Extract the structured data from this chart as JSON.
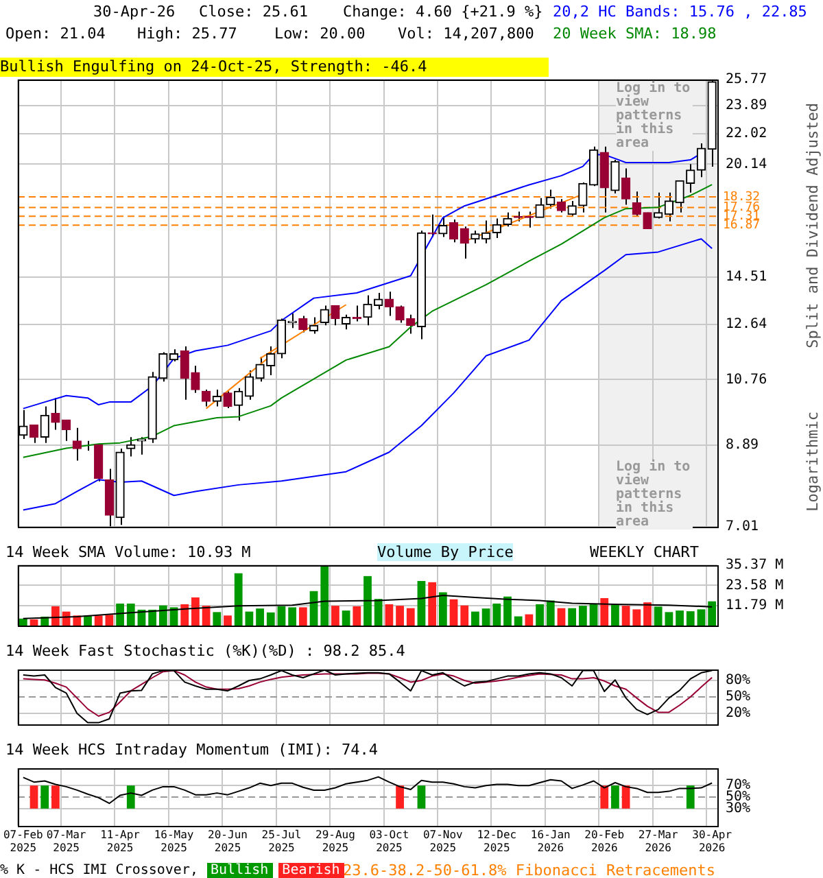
{
  "chart_data": [
    {
      "type": "candlestick",
      "subtitle": "Bullish Engulfing on 24-Oct-25, Strength: -46.4",
      "ylabel": "Split and Dividend Adjusted",
      "annotations": [
        "30-Apr-26",
        "Close: 25.61",
        "Change: 4.60 {+21.9 %}",
        "20,2 HC Bands: 15.76 , 22.85",
        "Open: 21.04",
        "High: 25.77",
        "Low: 20.00",
        "Vol: 14,207,800",
        "20 Week SMA: 18.98",
        "Log in to view patterns in this area",
        "Log in to view patterns in this area",
        "Logarithmic"
      ],
      "categories": [
        "07-Feb 2025",
        null,
        null,
        null,
        "07-Mar 2025",
        null,
        null,
        null,
        null,
        "11-Apr 2025",
        null,
        null,
        null,
        null,
        "16-May 2025",
        null,
        null,
        null,
        null,
        "20-Jun 2025",
        null,
        null,
        null,
        null,
        "25-Jul 2025",
        null,
        null,
        null,
        null,
        "29-Aug 2025",
        null,
        null,
        null,
        null,
        "03-Oct 2025",
        null,
        null,
        null,
        null,
        "07-Nov 2025",
        null,
        null,
        null,
        null,
        "12-Dec 2025",
        null,
        null,
        null,
        null,
        "16-Jan 2026",
        null,
        null,
        null,
        null,
        "20-Feb 2026",
        null,
        null,
        null,
        null,
        "27-Mar 2026",
        null,
        null,
        null,
        null,
        "30-Apr 2026"
      ],
      "tick_labels": "y",
      "log": true,
      "ylim": [
        7.01,
        25.77
      ],
      "yticks": [
        7.01,
        8.89,
        10.76,
        12.64,
        14.51,
        20.14,
        22.02,
        23.89,
        25.77
      ],
      "grid": true,
      "marker": "none",
      "ohlc": [
        [
          9.15,
          9.85,
          9.05,
          9.4
        ],
        [
          9.43,
          9.43,
          8.95,
          9.1
        ],
        [
          9.1,
          9.95,
          8.95,
          9.7
        ],
        [
          9.75,
          10.2,
          9.3,
          9.5
        ],
        [
          9.57,
          9.57,
          9.0,
          9.3
        ],
        [
          9.0,
          9.35,
          8.5,
          8.8
        ],
        [
          8.9,
          9.0,
          8.75,
          8.9
        ],
        [
          8.9,
          8.9,
          8.0,
          8.07
        ],
        [
          8.04,
          8.3,
          7.02,
          7.25
        ],
        [
          7.2,
          8.8,
          7.05,
          8.71
        ],
        [
          8.8,
          9.1,
          8.6,
          8.9
        ],
        [
          9.0,
          9.1,
          8.65,
          9.05
        ],
        [
          9.05,
          11.0,
          8.95,
          10.85
        ],
        [
          10.8,
          11.65,
          10.7,
          11.6
        ],
        [
          11.4,
          11.75,
          11.35,
          11.6
        ],
        [
          11.7,
          11.85,
          10.15,
          10.8
        ],
        [
          10.98,
          11.2,
          10.35,
          10.45
        ],
        [
          10.4,
          10.45,
          9.95,
          10.1
        ],
        [
          10.1,
          10.45,
          9.95,
          10.25
        ],
        [
          10.35,
          10.4,
          9.9,
          9.95
        ],
        [
          9.98,
          10.5,
          9.55,
          10.4
        ],
        [
          10.25,
          11.05,
          10.15,
          10.85
        ],
        [
          10.8,
          11.5,
          10.7,
          11.25
        ],
        [
          11.2,
          11.85,
          10.9,
          11.6
        ],
        [
          11.6,
          12.85,
          11.45,
          12.8
        ],
        [
          12.7,
          13.05,
          12.5,
          12.75
        ],
        [
          12.85,
          12.95,
          12.35,
          12.45
        ],
        [
          12.4,
          12.9,
          12.3,
          12.6
        ],
        [
          12.7,
          13.35,
          12.6,
          13.2
        ],
        [
          13.35,
          13.35,
          12.6,
          12.85
        ],
        [
          12.65,
          13.0,
          12.45,
          12.9
        ],
        [
          12.9,
          13.35,
          12.75,
          12.85
        ],
        [
          12.9,
          13.75,
          12.6,
          13.4
        ],
        [
          13.35,
          13.85,
          13.2,
          13.6
        ],
        [
          13.6,
          13.9,
          12.95,
          13.3
        ],
        [
          13.3,
          13.35,
          12.7,
          12.8
        ],
        [
          12.85,
          13.0,
          12.3,
          12.6
        ],
        [
          12.55,
          16.6,
          12.1,
          16.5
        ],
        [
          16.5,
          17.4,
          16.3,
          16.45
        ],
        [
          16.45,
          17.3,
          16.3,
          16.85
        ],
        [
          17.0,
          17.15,
          16.05,
          16.2
        ],
        [
          16.7,
          16.8,
          15.3,
          16.0
        ],
        [
          16.2,
          16.6,
          16.0,
          16.45
        ],
        [
          16.2,
          17.1,
          16.0,
          16.5
        ],
        [
          16.5,
          17.2,
          16.25,
          16.9
        ],
        [
          16.9,
          17.5,
          16.8,
          17.2
        ],
        [
          17.3,
          17.55,
          17.05,
          17.25
        ],
        [
          17.3,
          17.55,
          16.75,
          17.25
        ],
        [
          17.25,
          18.25,
          17.25,
          17.9
        ],
        [
          17.9,
          18.7,
          17.7,
          18.3
        ],
        [
          18.05,
          18.2,
          17.5,
          17.6
        ],
        [
          17.4,
          18.1,
          17.3,
          17.85
        ],
        [
          17.85,
          19.1,
          17.5,
          19.05
        ],
        [
          18.95,
          21.2,
          18.9,
          21.0
        ],
        [
          20.85,
          21.2,
          17.5,
          18.8
        ],
        [
          18.65,
          20.4,
          18.5,
          20.3
        ],
        [
          19.35,
          19.9,
          17.9,
          18.2
        ],
        [
          18.0,
          18.6,
          17.3,
          17.4
        ],
        [
          17.5,
          17.5,
          16.7,
          16.7
        ],
        [
          17.25,
          18.55,
          17.2,
          17.5
        ],
        [
          17.4,
          18.55,
          17.05,
          18.1
        ],
        [
          18.0,
          19.2,
          17.5,
          19.2
        ],
        [
          19.05,
          20.15,
          18.55,
          19.8
        ],
        [
          19.8,
          21.4,
          19.4,
          21.1
        ],
        [
          21.04,
          25.77,
          20.0,
          25.61
        ]
      ],
      "colors": [
        "#000000",
        "#990033",
        "#000000",
        "#990033",
        "#990033",
        "#990033",
        "#000000",
        "#990033",
        "#990033",
        "#000000",
        "#000000",
        "#000000",
        "#000000",
        "#000000",
        "#000000",
        "#990033",
        "#990033",
        "#990033",
        "#000000",
        "#990033",
        "#000000",
        "#000000",
        "#000000",
        "#000000",
        "#000000",
        "#000000",
        "#990033",
        "#000000",
        "#000000",
        "#990033",
        "#000000",
        "#990033",
        "#000000",
        "#000000",
        "#990033",
        "#990033",
        "#990033",
        "#000000",
        "#990033",
        "#000000",
        "#990033",
        "#990033",
        "#000000",
        "#000000",
        "#000000",
        "#000000",
        "#990033",
        "#990033",
        "#000000",
        "#000000",
        "#990033",
        "#000000",
        "#000000",
        "#000000",
        "#990033",
        "#000000",
        "#990033",
        "#990033",
        "#990033",
        "#000000",
        "#000000",
        "#000000",
        "#000000",
        "#000000",
        "#000000"
      ],
      "series": [
        {
          "type": "line",
          "color": "#0000ff",
          "values": [
            9.89,
            null,
            10.08,
            null,
            10.27,
            null,
            10.2,
            10.0,
            10.08,
            null,
            10.08,
            null,
            10.56,
            null,
            11.44,
            null,
            11.7,
            null,
            null,
            11.89,
            null,
            null,
            null,
            12.4,
            12.78,
            null,
            null,
            13.64,
            null,
            null,
            null,
            13.85,
            null,
            null,
            null,
            null,
            14.56,
            null,
            null,
            17.24,
            null,
            17.84,
            null,
            null,
            null,
            null,
            null,
            18.97,
            null,
            null,
            19.48,
            null,
            20.01,
            20.71,
            20.71,
            20.48,
            20.24,
            null,
            20.24,
            null,
            20.24,
            null,
            20.4,
            20.79,
            null
          ]
        },
        {
          "type": "line",
          "color": "#0000ff",
          "values": [
            7.36,
            null,
            null,
            7.5,
            null,
            7.77,
            null,
            8.04,
            null,
            7.98,
            null,
            8.01,
            null,
            null,
            7.68,
            null,
            7.77,
            null,
            null,
            null,
            7.92,
            null,
            null,
            null,
            8.01,
            null,
            null,
            null,
            null,
            null,
            8.23,
            null,
            null,
            null,
            8.71,
            null,
            null,
            9.41,
            null,
            null,
            10.35,
            null,
            null,
            11.53,
            null,
            null,
            null,
            12.07,
            null,
            null,
            13.54,
            null,
            null,
            null,
            14.78,
            null,
            15.48,
            null,
            null,
            15.6,
            null,
            null,
            null,
            16.21,
            15.76
          ]
        },
        {
          "type": "line",
          "color": "#008800",
          "values": [
            8.58,
            null,
            null,
            null,
            8.81,
            null,
            null,
            8.92,
            null,
            8.95,
            null,
            null,
            9.12,
            null,
            9.41,
            null,
            9.52,
            null,
            9.63,
            null,
            9.66,
            null,
            null,
            9.97,
            10.2,
            null,
            null,
            null,
            null,
            null,
            11.39,
            null,
            null,
            null,
            11.84,
            null,
            12.54,
            null,
            13.13,
            null,
            null,
            null,
            null,
            14.18,
            null,
            null,
            null,
            15.19,
            null,
            null,
            15.96,
            null,
            null,
            null,
            17.24,
            null,
            17.7,
            null,
            null,
            17.77,
            null,
            null,
            18.39,
            null,
            18.98
          ]
        },
        {
          "type": "line",
          "color": "#ff8000",
          "values": [
            null,
            null,
            null,
            null,
            null,
            null,
            null,
            null,
            null,
            null,
            null,
            null,
            null,
            null,
            null,
            null,
            null,
            9.89,
            null,
            null,
            null,
            null,
            null,
            null,
            11.83,
            null,
            null,
            null,
            null,
            null,
            null,
            null,
            null,
            null,
            null,
            null,
            null,
            null,
            null,
            null,
            null,
            null,
            null,
            null,
            null,
            null,
            null,
            null,
            null,
            null,
            null,
            null,
            null,
            null,
            null,
            null,
            null,
            null,
            null,
            null,
            null,
            null,
            null,
            null,
            null
          ]
        },
        {
          "type": "line",
          "color": "#ff8000",
          "values": [
            null,
            null,
            null,
            null,
            null,
            null,
            null,
            null,
            null,
            null,
            null,
            null,
            null,
            null,
            null,
            null,
            null,
            null,
            null,
            null,
            null,
            null,
            11.44,
            null,
            null,
            null,
            null,
            null,
            null,
            null,
            13.38,
            null,
            null,
            null,
            null,
            null,
            null,
            null,
            null,
            null,
            null,
            null,
            null,
            null,
            null,
            null,
            null,
            null,
            null,
            null,
            null,
            null,
            null,
            null,
            null,
            null,
            null,
            null,
            null,
            null,
            null,
            null,
            null,
            null,
            null
          ]
        },
        {
          "type": "line",
          "color": "#ff8000",
          "values": [
            null,
            null,
            null,
            null,
            null,
            null,
            null,
            null,
            null,
            null,
            null,
            null,
            null,
            null,
            null,
            null,
            null,
            null,
            null,
            null,
            null,
            null,
            null,
            null,
            null,
            null,
            null,
            null,
            null,
            null,
            null,
            null,
            null,
            null,
            null,
            null,
            null,
            null,
            null,
            null,
            null,
            16.09,
            null,
            null,
            null,
            null,
            null,
            null,
            null,
            null,
            null,
            null,
            18.46,
            null,
            null,
            null,
            null,
            null,
            null,
            null,
            null,
            null,
            null,
            null,
            null
          ]
        }
      ],
      "ref_lines": [
        {
          "axis": "y",
          "value": 18.32,
          "label": "18.32",
          "color": "#ff8000",
          "line_style": "dashed"
        },
        {
          "axis": "y",
          "value": 17.76,
          "label": "17.76",
          "color": "#ff8000",
          "line_style": "dashed"
        },
        {
          "axis": "y",
          "value": 17.31,
          "label": "17.31",
          "color": "#ff8000",
          "line_style": "dashed"
        },
        {
          "axis": "y",
          "value": 16.87,
          "label": "16.87",
          "color": "#ff8000",
          "line_style": "dashed"
        }
      ],
      "bands": [
        {
          "axis": "x",
          "from": "20-Feb 2026",
          "to": "30-Apr 2026",
          "color": "#f0f0f0"
        }
      ]
    },
    {
      "type": "bar",
      "title": "14 Week SMA Volume: 10.93 M",
      "annotations": [
        "Volume By Price",
        "WEEKLY CHART"
      ],
      "categories": [
        "07-Feb 2025",
        null,
        null,
        null,
        "07-Mar 2025",
        null,
        null,
        null,
        null,
        "11-Apr 2025",
        null,
        null,
        null,
        null,
        "16-May 2025",
        null,
        null,
        null,
        null,
        "20-Jun 2025",
        null,
        null,
        null,
        null,
        "25-Jul 2025",
        null,
        null,
        null,
        null,
        "29-Aug 2025",
        null,
        null,
        null,
        null,
        "03-Oct 2025",
        null,
        null,
        null,
        null,
        "07-Nov 2025",
        null,
        null,
        null,
        null,
        "12-Dec 2025",
        null,
        null,
        null,
        null,
        "16-Jan 2026",
        null,
        null,
        null,
        null,
        "20-Feb 2026",
        null,
        null,
        null,
        null,
        "27-Mar 2026",
        null,
        null,
        null,
        null,
        "30-Apr 2026"
      ],
      "tick_labels": "y",
      "ylim": [
        0,
        35.37
      ],
      "yticks": [
        {
          "value": 11.79,
          "label": "11.79 M"
        },
        {
          "value": 23.58,
          "label": "23.58 M"
        },
        {
          "value": 35.37,
          "label": "35.37 M"
        }
      ],
      "grid": true,
      "marker": "none",
      "series": [
        {
          "type": "bar",
          "values": [
            4.1,
            3.6,
            5.2,
            11.3,
            8.2,
            5.9,
            5.9,
            5.9,
            6.3,
            12.9,
            12.9,
            9.3,
            9.3,
            11.8,
            10.7,
            12.5,
            16.5,
            11.6,
            7.9,
            5.9,
            30.6,
            8.2,
            10.0,
            7.7,
            11.3,
            10.7,
            10.7,
            20.2,
            34.7,
            11.6,
            8.8,
            11.3,
            29.0,
            15.6,
            12.5,
            11.6,
            10.2,
            26.1,
            25.4,
            19.5,
            15.4,
            11.8,
            8.2,
            10.0,
            12.9,
            17.0,
            5.4,
            6.6,
            12.5,
            14.7,
            10.2,
            10.2,
            11.6,
            12.9,
            16.1,
            12.5,
            11.6,
            9.5,
            13.6,
            11.1,
            7.9,
            8.8,
            8.4,
            9.5,
            14.2
          ],
          "colors": [
            "#009900",
            "#ff2020",
            "#009900",
            "#ff2020",
            "#ff2020",
            "#ff2020",
            "#009900",
            "#ff2020",
            "#ff2020",
            "#009900",
            "#009900",
            "#009900",
            "#009900",
            "#009900",
            "#009900",
            "#ff2020",
            "#ff2020",
            "#ff2020",
            "#009900",
            "#ff2020",
            "#009900",
            "#009900",
            "#009900",
            "#009900",
            "#009900",
            "#009900",
            "#ff2020",
            "#009900",
            "#009900",
            "#ff2020",
            "#009900",
            "#ff2020",
            "#009900",
            "#009900",
            "#ff2020",
            "#ff2020",
            "#ff2020",
            "#009900",
            "#ff2020",
            "#009900",
            "#ff2020",
            "#ff2020",
            "#009900",
            "#009900",
            "#009900",
            "#009900",
            "#009900",
            "#ff2020",
            "#009900",
            "#009900",
            "#ff2020",
            "#009900",
            "#009900",
            "#009900",
            "#ff2020",
            "#009900",
            "#ff2020",
            "#ff2020",
            "#ff2020",
            "#009900",
            "#009900",
            "#009900",
            "#009900",
            "#009900",
            "#009900"
          ]
        },
        {
          "type": "line",
          "color": "#000000",
          "values": [
            4.1,
            null,
            null,
            null,
            null,
            5.2,
            null,
            null,
            null,
            null,
            7.5,
            null,
            null,
            null,
            null,
            9.7,
            null,
            null,
            null,
            null,
            11.6,
            null,
            null,
            null,
            null,
            12.0,
            null,
            null,
            14.3,
            null,
            null,
            null,
            null,
            14.7,
            null,
            null,
            null,
            15.9,
            null,
            17.7,
            null,
            null,
            16.5,
            null,
            null,
            15.4,
            null,
            null,
            14.7,
            null,
            null,
            13.1,
            null,
            null,
            null,
            12.5,
            null,
            null,
            null,
            null,
            12.0,
            null,
            null,
            null,
            10.93
          ]
        }
      ]
    },
    {
      "type": "line",
      "title": "14 Week Fast Stochastic (%K)(%D) : 98.2 85.4",
      "categories": [
        "07-Feb 2025",
        null,
        null,
        null,
        "07-Mar 2025",
        null,
        null,
        null,
        null,
        "11-Apr 2025",
        null,
        null,
        null,
        null,
        "16-May 2025",
        null,
        null,
        null,
        null,
        "20-Jun 2025",
        null,
        null,
        null,
        null,
        "25-Jul 2025",
        null,
        null,
        null,
        null,
        "29-Aug 2025",
        null,
        null,
        null,
        null,
        "03-Oct 2025",
        null,
        null,
        null,
        null,
        "07-Nov 2025",
        null,
        null,
        null,
        null,
        "12-Dec 2025",
        null,
        null,
        null,
        null,
        "16-Jan 2026",
        null,
        null,
        null,
        null,
        "20-Feb 2026",
        null,
        null,
        null,
        null,
        "27-Mar 2026",
        null,
        null,
        null,
        null,
        "30-Apr 2026"
      ],
      "tick_labels": "y",
      "ylim": [
        0,
        100
      ],
      "yticks": [
        {
          "value": 20,
          "label": "20%"
        },
        {
          "value": 50,
          "label": "50%"
        },
        {
          "value": 80,
          "label": "80%"
        }
      ],
      "grid": true,
      "marker": "none",
      "series": [
        {
          "color": "#000000",
          "values": [
            90,
            88,
            90,
            67,
            57,
            20,
            3,
            3,
            10,
            57,
            61,
            62,
            92,
            98,
            98,
            77,
            70,
            64,
            64,
            61,
            70,
            80,
            83,
            90,
            98,
            90,
            85,
            92,
            99,
            90,
            92,
            93,
            94,
            94,
            92,
            77,
            61,
            98,
            90,
            94,
            81,
            70,
            77,
            78,
            83,
            88,
            88,
            92,
            94,
            92,
            85,
            70,
            98,
            98,
            60,
            81,
            48,
            27,
            18,
            27,
            48,
            62,
            83,
            94,
            98.2
          ]
        },
        {
          "color": "#990033",
          "values": [
            83,
            82,
            81,
            75,
            68,
            48,
            28,
            15,
            22,
            41,
            61,
            73,
            85,
            96,
            98,
            90,
            77,
            68,
            64,
            64,
            65,
            70,
            77,
            82,
            86,
            88,
            90,
            91,
            92,
            92,
            92,
            92,
            93,
            93,
            92,
            85,
            77,
            80,
            88,
            92,
            88,
            80,
            75,
            77,
            79,
            82,
            86,
            89,
            92,
            91,
            90,
            83,
            83,
            85,
            79,
            70,
            64,
            48,
            33,
            22,
            22,
            35,
            50,
            68,
            85.4
          ]
        }
      ],
      "ref_lines": [
        {
          "axis": "y",
          "value": 50,
          "color": "#999999",
          "line_style": "dashed"
        }
      ]
    },
    {
      "type": "bar",
      "title": "14 Week HCS Intraday Momentum (IMI): 74.4",
      "annotations": [
        "23.6-38.2-50-61.8% Fibonacci Retracements"
      ],
      "legend": "bottom",
      "legend_title": "% K - HCS IMI Crossover,",
      "categories": [
        "07-Feb 2025",
        null,
        null,
        null,
        "07-Mar 2025",
        null,
        null,
        null,
        null,
        "11-Apr 2025",
        null,
        null,
        null,
        null,
        "16-May 2025",
        null,
        null,
        null,
        null,
        "20-Jun 2025",
        null,
        null,
        null,
        null,
        "25-Jul 2025",
        null,
        null,
        null,
        null,
        "29-Aug 2025",
        null,
        null,
        null,
        null,
        "03-Oct 2025",
        null,
        null,
        null,
        null,
        "07-Nov 2025",
        null,
        null,
        null,
        null,
        "12-Dec 2025",
        null,
        null,
        null,
        null,
        "16-Jan 2026",
        null,
        null,
        null,
        null,
        "20-Feb 2026",
        null,
        null,
        null,
        null,
        "27-Mar 2026",
        null,
        null,
        null,
        null,
        "30-Apr 2026"
      ],
      "ylim": [
        0,
        100
      ],
      "yticks": [
        {
          "value": 30,
          "label": "30%"
        },
        {
          "value": 50,
          "label": "50%"
        },
        {
          "value": 70,
          "label": "70%"
        }
      ],
      "grid": true,
      "marker": "none",
      "series": [
        {
          "name": "Bullish",
          "type": "bar",
          "color": "#009900",
          "values": [
            null,
            null,
            40,
            null,
            null,
            null,
            null,
            null,
            null,
            null,
            40,
            null,
            null,
            null,
            null,
            null,
            null,
            null,
            null,
            null,
            null,
            null,
            null,
            null,
            null,
            null,
            null,
            null,
            null,
            null,
            null,
            null,
            null,
            null,
            null,
            null,
            null,
            40,
            null,
            null,
            null,
            null,
            null,
            null,
            null,
            null,
            null,
            null,
            null,
            null,
            null,
            null,
            null,
            null,
            null,
            40,
            null,
            null,
            null,
            null,
            null,
            null,
            40,
            null,
            null
          ],
          "base": [
            null,
            null,
            30,
            null,
            null,
            null,
            null,
            null,
            null,
            null,
            30,
            null,
            null,
            null,
            null,
            null,
            null,
            null,
            null,
            null,
            null,
            null,
            null,
            null,
            null,
            null,
            null,
            null,
            null,
            null,
            null,
            null,
            null,
            null,
            null,
            null,
            null,
            30,
            null,
            null,
            null,
            null,
            null,
            null,
            null,
            null,
            null,
            null,
            null,
            null,
            null,
            null,
            null,
            null,
            null,
            30,
            null,
            null,
            null,
            null,
            null,
            null,
            30,
            null,
            null
          ]
        },
        {
          "name": "Bearish",
          "type": "bar",
          "color": "#ff2020",
          "values": [
            null,
            40,
            null,
            40,
            null,
            null,
            null,
            null,
            null,
            null,
            null,
            null,
            null,
            null,
            null,
            null,
            null,
            null,
            null,
            null,
            null,
            null,
            null,
            null,
            null,
            null,
            null,
            null,
            null,
            null,
            null,
            null,
            null,
            null,
            null,
            40,
            null,
            null,
            null,
            null,
            null,
            null,
            null,
            null,
            null,
            null,
            null,
            null,
            null,
            null,
            null,
            null,
            null,
            null,
            40,
            null,
            40,
            null,
            null,
            null,
            null,
            null,
            null,
            null,
            null
          ],
          "base": [
            null,
            30,
            null,
            30,
            null,
            null,
            null,
            null,
            null,
            null,
            null,
            null,
            null,
            null,
            null,
            null,
            null,
            null,
            null,
            null,
            null,
            null,
            null,
            null,
            null,
            null,
            null,
            null,
            null,
            null,
            null,
            null,
            null,
            null,
            null,
            30,
            null,
            null,
            null,
            null,
            null,
            null,
            null,
            null,
            null,
            null,
            null,
            null,
            null,
            null,
            null,
            null,
            null,
            null,
            30,
            null,
            30,
            null,
            null,
            null,
            null,
            null,
            null,
            null,
            null
          ]
        },
        {
          "type": "line",
          "color": "#000000",
          "values": [
            84,
            76,
            78,
            72,
            68,
            62,
            55,
            49,
            39,
            53,
            57,
            53,
            62,
            68,
            68,
            62,
            54,
            54,
            57,
            54,
            60,
            66,
            74,
            70,
            74,
            74,
            67,
            62,
            62,
            66,
            73,
            76,
            79,
            85,
            76,
            68,
            63,
            79,
            76,
            76,
            73,
            68,
            66,
            70,
            72,
            72,
            70,
            70,
            75,
            80,
            78,
            65,
            71,
            78,
            66,
            75,
            68,
            65,
            58,
            58,
            60,
            65,
            65,
            66,
            74.4
          ]
        }
      ],
      "ref_lines": [
        {
          "axis": "y",
          "value": 50,
          "color": "#999999",
          "line_style": "dashed"
        }
      ]
    }
  ]
}
